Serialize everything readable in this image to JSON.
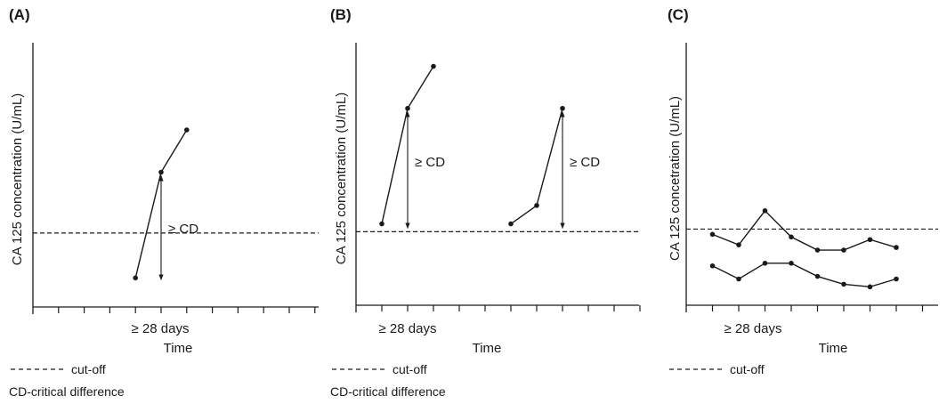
{
  "chart_data": [
    {
      "panel": "(A)",
      "type": "line",
      "ylabel": "CA 125 concentration (U/mL)",
      "xlabel": "Time",
      "x_annotation": "≥ 28 days",
      "diff_label": "≥ CD",
      "series": [
        {
          "points": [
            [
              4,
              1.1
            ],
            [
              5,
              5.1
            ],
            [
              6,
              6.7
            ]
          ]
        }
      ],
      "cutoff": 2.8,
      "difference_arrows": [
        {
          "x": 5,
          "from": 1.1,
          "to": 5.1
        }
      ],
      "xlim": [
        0,
        10
      ],
      "ylim": [
        0,
        10
      ],
      "legend": [
        "cut-off",
        "CD-critical difference"
      ]
    },
    {
      "panel": "(B)",
      "type": "line",
      "ylabel": "CA 125 concentration (U/mL)",
      "xlabel": "Time",
      "x_annotation": "≥ 28 days",
      "diff_label": "≥ CD",
      "series": [
        {
          "points": [
            [
              1,
              3.1
            ],
            [
              2,
              7.5
            ],
            [
              3,
              9.1
            ]
          ]
        },
        {
          "points": [
            [
              6,
              3.1
            ],
            [
              7,
              3.8
            ],
            [
              8,
              7.5
            ]
          ]
        }
      ],
      "cutoff": 2.8,
      "difference_arrows": [
        {
          "x": 2,
          "from": 3.0,
          "to": 7.5
        },
        {
          "x": 8,
          "from": 3.0,
          "to": 7.5
        }
      ],
      "xlim": [
        0,
        10
      ],
      "ylim": [
        0,
        10
      ],
      "legend": [
        "cut-off",
        "CD-critical difference"
      ]
    },
    {
      "panel": "(C)",
      "type": "line",
      "ylabel": "CA 125 concetration (U/mL)",
      "xlabel": "Time",
      "x_annotation": "≥ 28 days",
      "series": [
        {
          "points": [
            [
              1,
              2.7
            ],
            [
              2,
              2.3
            ],
            [
              3,
              3.6
            ],
            [
              4,
              2.6
            ],
            [
              5,
              2.1
            ],
            [
              6,
              2.1
            ],
            [
              7,
              2.5
            ],
            [
              8,
              2.2
            ]
          ]
        },
        {
          "points": [
            [
              1,
              1.5
            ],
            [
              2,
              1.0
            ],
            [
              3,
              1.6
            ],
            [
              4,
              1.6
            ],
            [
              5,
              1.1
            ],
            [
              6,
              0.8
            ],
            [
              7,
              0.7
            ],
            [
              8,
              1.0
            ]
          ]
        }
      ],
      "cutoff": 2.9,
      "xlim": [
        0,
        10
      ],
      "ylim": [
        0,
        10
      ],
      "legend": [
        "cut-off"
      ]
    }
  ]
}
